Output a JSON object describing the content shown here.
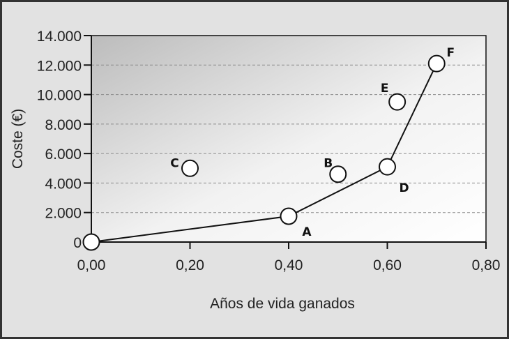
{
  "chart_data": {
    "type": "scatter",
    "title": "",
    "xlabel": "Años de vida ganados",
    "ylabel": "Coste (€)",
    "xlim": [
      0,
      0.8
    ],
    "ylim": [
      0,
      14000
    ],
    "x_ticks": [
      "0,00",
      "0,20",
      "0,40",
      "0,60",
      "0,80"
    ],
    "y_ticks": [
      "0",
      "2.000",
      "4.000",
      "6.000",
      "8.000",
      "10.000",
      "12.000",
      "14.000"
    ],
    "grid": "horizontal dashed",
    "points": [
      {
        "label": "",
        "x": 0.0,
        "y": 0
      },
      {
        "label": "A",
        "x": 0.4,
        "y": 1750
      },
      {
        "label": "B",
        "x": 0.5,
        "y": 4600
      },
      {
        "label": "C",
        "x": 0.2,
        "y": 5000
      },
      {
        "label": "D",
        "x": 0.6,
        "y": 5100
      },
      {
        "label": "E",
        "x": 0.62,
        "y": 9500
      },
      {
        "label": "F",
        "x": 0.7,
        "y": 12100
      }
    ],
    "frontier": [
      "",
      "A",
      "D",
      "F"
    ]
  }
}
